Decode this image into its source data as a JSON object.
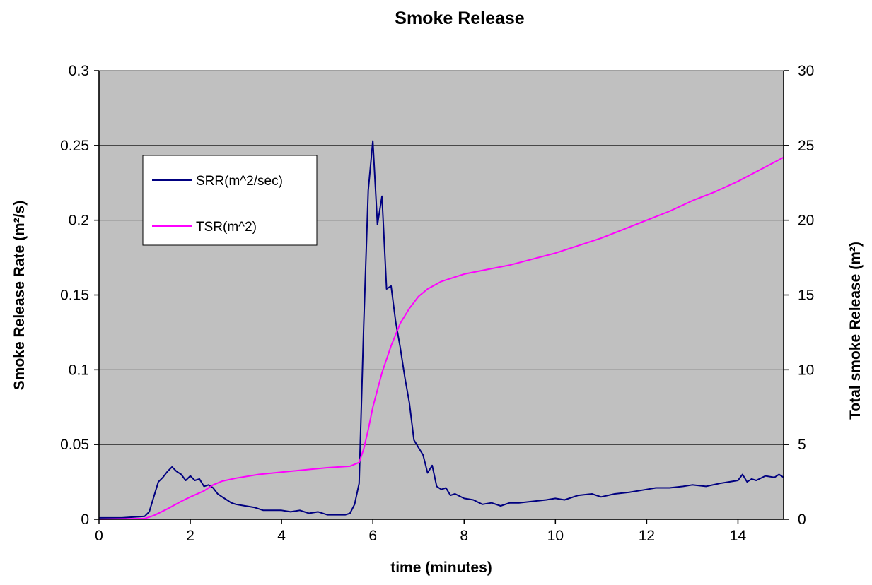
{
  "chart_data": {
    "type": "line",
    "title": "Smoke Release",
    "xlabel": "time (minutes)",
    "ylabel": "Smoke Release Rate (m²/s)",
    "y2label": "Total smoke Release (m²)",
    "xlim": [
      0,
      15
    ],
    "ylim": [
      0,
      0.3
    ],
    "y2lim": [
      0,
      30
    ],
    "x_ticks": [
      "0",
      "2",
      "4",
      "6",
      "8",
      "10",
      "12",
      "14"
    ],
    "x_tick_values": [
      0,
      2,
      4,
      6,
      8,
      10,
      12,
      14
    ],
    "y_ticks": [
      "0",
      "0.05",
      "0.1",
      "0.15",
      "0.2",
      "0.25",
      "0.3"
    ],
    "y_tick_values": [
      0,
      0.05,
      0.1,
      0.15,
      0.2,
      0.25,
      0.3
    ],
    "y2_ticks": [
      "0",
      "5",
      "10",
      "15",
      "20",
      "25",
      "30"
    ],
    "y2_tick_values": [
      0,
      5,
      10,
      15,
      20,
      25,
      30
    ],
    "grid": "horizontal",
    "plot_background": "#C0C0C0",
    "legend_position": "top-left",
    "series": [
      {
        "name": "SRR(m^2/sec)",
        "axis": "left",
        "color": "#000080",
        "x": [
          0,
          0.5,
          1.0,
          1.1,
          1.2,
          1.3,
          1.4,
          1.5,
          1.6,
          1.7,
          1.8,
          1.9,
          2.0,
          2.1,
          2.2,
          2.3,
          2.4,
          2.5,
          2.6,
          2.7,
          2.8,
          2.9,
          3.0,
          3.2,
          3.4,
          3.6,
          3.8,
          4.0,
          4.2,
          4.4,
          4.6,
          4.8,
          5.0,
          5.2,
          5.4,
          5.5,
          5.6,
          5.7,
          5.8,
          5.9,
          6.0,
          6.1,
          6.2,
          6.3,
          6.4,
          6.5,
          6.6,
          6.7,
          6.8,
          6.9,
          7.0,
          7.1,
          7.2,
          7.3,
          7.4,
          7.5,
          7.6,
          7.7,
          7.8,
          8.0,
          8.2,
          8.4,
          8.6,
          8.8,
          9.0,
          9.2,
          9.5,
          9.8,
          10.0,
          10.2,
          10.5,
          10.8,
          11.0,
          11.3,
          11.6,
          12.0,
          12.2,
          12.5,
          12.8,
          13.0,
          13.3,
          13.6,
          13.8,
          14.0,
          14.1,
          14.2,
          14.3,
          14.4,
          14.6,
          14.8,
          14.9,
          15.0
        ],
        "y": [
          0.001,
          0.001,
          0.002,
          0.005,
          0.015,
          0.025,
          0.028,
          0.032,
          0.035,
          0.032,
          0.03,
          0.026,
          0.029,
          0.026,
          0.027,
          0.022,
          0.023,
          0.021,
          0.017,
          0.015,
          0.013,
          0.011,
          0.01,
          0.009,
          0.008,
          0.006,
          0.006,
          0.006,
          0.005,
          0.006,
          0.004,
          0.005,
          0.003,
          0.003,
          0.003,
          0.004,
          0.01,
          0.024,
          0.13,
          0.22,
          0.253,
          0.197,
          0.216,
          0.154,
          0.156,
          0.132,
          0.115,
          0.095,
          0.078,
          0.053,
          0.048,
          0.043,
          0.031,
          0.036,
          0.022,
          0.02,
          0.021,
          0.016,
          0.017,
          0.014,
          0.013,
          0.01,
          0.011,
          0.009,
          0.011,
          0.011,
          0.012,
          0.013,
          0.014,
          0.013,
          0.016,
          0.017,
          0.015,
          0.017,
          0.018,
          0.02,
          0.021,
          0.021,
          0.022,
          0.023,
          0.022,
          0.024,
          0.025,
          0.026,
          0.03,
          0.025,
          0.027,
          0.026,
          0.029,
          0.028,
          0.03,
          0.028
        ]
      },
      {
        "name": "TSR(m^2)",
        "axis": "right",
        "color": "#FF00FF",
        "x": [
          0,
          1.0,
          1.2,
          1.5,
          1.8,
          2.0,
          2.3,
          2.5,
          2.7,
          3.0,
          3.5,
          4.0,
          4.5,
          5.0,
          5.5,
          5.7,
          5.8,
          5.9,
          6.0,
          6.2,
          6.4,
          6.6,
          6.8,
          7.0,
          7.2,
          7.5,
          8.0,
          8.5,
          9.0,
          9.5,
          10.0,
          10.5,
          11.0,
          11.5,
          12.0,
          12.5,
          13.0,
          13.5,
          14.0,
          14.5,
          15.0
        ],
        "y": [
          0,
          0.05,
          0.25,
          0.7,
          1.2,
          1.5,
          1.9,
          2.3,
          2.55,
          2.75,
          3.0,
          3.15,
          3.3,
          3.45,
          3.55,
          3.8,
          4.7,
          6.0,
          7.5,
          9.8,
          11.6,
          13.1,
          14.1,
          14.9,
          15.4,
          15.9,
          16.4,
          16.7,
          17.0,
          17.4,
          17.8,
          18.3,
          18.8,
          19.4,
          20.0,
          20.6,
          21.3,
          21.9,
          22.6,
          23.4,
          24.2
        ]
      }
    ]
  }
}
